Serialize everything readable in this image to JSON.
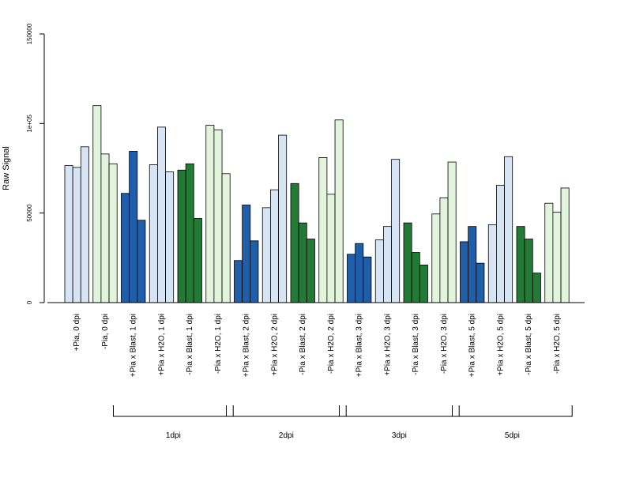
{
  "chart_data": {
    "type": "bar",
    "ylabel": "Raw Signal",
    "ylim": [
      0,
      150000
    ],
    "yticks": [
      {
        "value": 0,
        "label": "0"
      },
      {
        "value": 50000,
        "label": "50000"
      },
      {
        "value": 100000,
        "label": "1e+05"
      },
      {
        "value": 150000,
        "label": "150000"
      }
    ],
    "colors": {
      "light_blue": "#d6e4f4",
      "light_green": "#e2f5dc",
      "dark_blue": "#1f5ea8",
      "dark_green": "#237a36",
      "border": "#000000"
    },
    "categories": [
      "+Pia, 0 dpi",
      "-Pia, 0 dpi",
      "+Pia x Blast, 1 dpi",
      "+Pia x H2O, 1 dpi",
      "-Pia x Blast, 1 dpi",
      "-Pia x H2O, 1 dpi",
      "+Pia x Blast, 2 dpi",
      "+Pia x H2O, 2 dpi",
      "-Pia x Blast, 2 dpi",
      "-Pia x H2O, 2 dpi",
      "+Pia x Blast, 3 dpi",
      "+Pia x H2O, 3 dpi",
      "-Pia x Blast, 3 dpi",
      "-Pia x H2O, 3 dpi",
      "+Pia x Blast, 5 dpi",
      "+Pia x H2O, 5 dpi",
      "-Pia x Blast, 5 dpi",
      "-Pia x H2O, 5 dpi"
    ],
    "groups": [
      {
        "color": "light_blue",
        "values": [
          76500,
          75500,
          87000
        ]
      },
      {
        "color": "light_green",
        "values": [
          110000,
          83000,
          77500
        ]
      },
      {
        "color": "dark_blue",
        "values": [
          61000,
          84500,
          46000
        ]
      },
      {
        "color": "light_blue",
        "values": [
          77000,
          98000,
          73000
        ]
      },
      {
        "color": "dark_green",
        "values": [
          74000,
          77500,
          47000
        ]
      },
      {
        "color": "light_green",
        "values": [
          99000,
          96500,
          72000
        ]
      },
      {
        "color": "dark_blue",
        "values": [
          23500,
          54500,
          34500
        ]
      },
      {
        "color": "light_blue",
        "values": [
          53000,
          63000,
          93500
        ]
      },
      {
        "color": "dark_green",
        "values": [
          66500,
          44500,
          35500
        ]
      },
      {
        "color": "light_green",
        "values": [
          81000,
          60500,
          102000
        ]
      },
      {
        "color": "dark_blue",
        "values": [
          27000,
          33000,
          25500
        ]
      },
      {
        "color": "light_blue",
        "values": [
          35000,
          42500,
          80000
        ]
      },
      {
        "color": "dark_green",
        "values": [
          44500,
          28000,
          21000
        ]
      },
      {
        "color": "light_green",
        "values": [
          49500,
          58500,
          78500
        ]
      },
      {
        "color": "dark_blue",
        "values": [
          34000,
          42500,
          22000
        ]
      },
      {
        "color": "light_blue",
        "values": [
          43500,
          65500,
          81500
        ]
      },
      {
        "color": "dark_green",
        "values": [
          42500,
          35500,
          16500
        ]
      },
      {
        "color": "light_green",
        "values": [
          55500,
          50500,
          64000
        ]
      }
    ],
    "brackets": [
      {
        "label": "1dpi",
        "from": 2,
        "to": 5
      },
      {
        "label": "2dpi",
        "from": 6,
        "to": 9
      },
      {
        "label": "3dpi",
        "from": 10,
        "to": 13
      },
      {
        "label": "5dpi",
        "from": 14,
        "to": 17
      }
    ]
  }
}
